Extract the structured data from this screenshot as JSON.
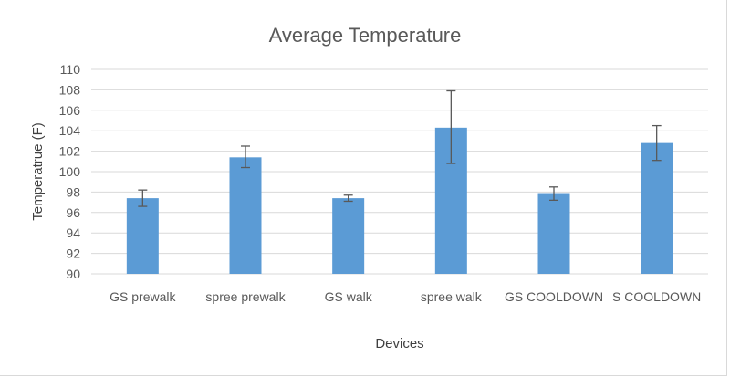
{
  "chart_data": {
    "type": "bar",
    "title": "Average Temperature",
    "xlabel": "Devices",
    "ylabel": "Temperatrue (F)",
    "ylim": [
      90,
      110
    ],
    "yticks": [
      90,
      92,
      94,
      96,
      98,
      100,
      102,
      104,
      106,
      108,
      110
    ],
    "grid": true,
    "categories": [
      "GS prewalk",
      "spree prewalk",
      "GS walk",
      "spree walk",
      "GS COOLDOWN",
      "S COOLDOWN"
    ],
    "values": [
      97.4,
      101.4,
      97.4,
      104.3,
      97.9,
      102.8
    ],
    "error_upper": [
      98.2,
      102.5,
      97.7,
      107.9,
      98.5,
      104.5
    ],
    "error_lower": [
      96.6,
      100.4,
      97.1,
      100.8,
      97.2,
      101.1
    ],
    "bar_color": "#5b9bd5",
    "error_color": "#595959"
  }
}
